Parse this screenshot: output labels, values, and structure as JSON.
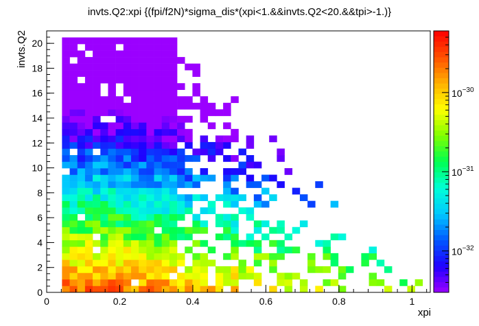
{
  "chart_data": {
    "type": "heatmap",
    "title": "invts.Q2:xpi {(fpi/f2N)*sigma_dis*(xpi<1.&&invts.Q2<20.&&tpi>-1.)}",
    "xlabel": "xpi",
    "ylabel": "invts.Q2",
    "xlim": [
      0,
      1.05
    ],
    "ylim": [
      0,
      21
    ],
    "x_ticks": [
      "0",
      "0.2",
      "0.4",
      "0.6",
      "0.8",
      "1"
    ],
    "y_ticks": [
      "0",
      "2",
      "4",
      "6",
      "8",
      "10",
      "12",
      "14",
      "16",
      "18",
      "20"
    ],
    "colorbar": {
      "scale": "log",
      "range": [
        3e-33,
        6e-30
      ],
      "tick_labels": [
        "10",
        "10",
        "10"
      ],
      "tick_exponents": [
        "−32",
        "−31",
        "−30"
      ],
      "tick_values": [
        -32,
        -31,
        -30
      ],
      "colors": [
        "#9b00ff",
        "#2000ff",
        "#0058ff",
        "#00c8ff",
        "#00ffd8",
        "#00ff50",
        "#80ff00",
        "#ffff00",
        "#ffb000",
        "#ff5000",
        "#ff0000"
      ]
    },
    "bins": {
      "nx": 50,
      "ny": 40,
      "x_range": [
        0,
        1.05
      ],
      "y_range": [
        0,
        21
      ],
      "description": "log10 cell values; higher density at low xpi and low Q2"
    },
    "grid": false,
    "legend": "none"
  }
}
